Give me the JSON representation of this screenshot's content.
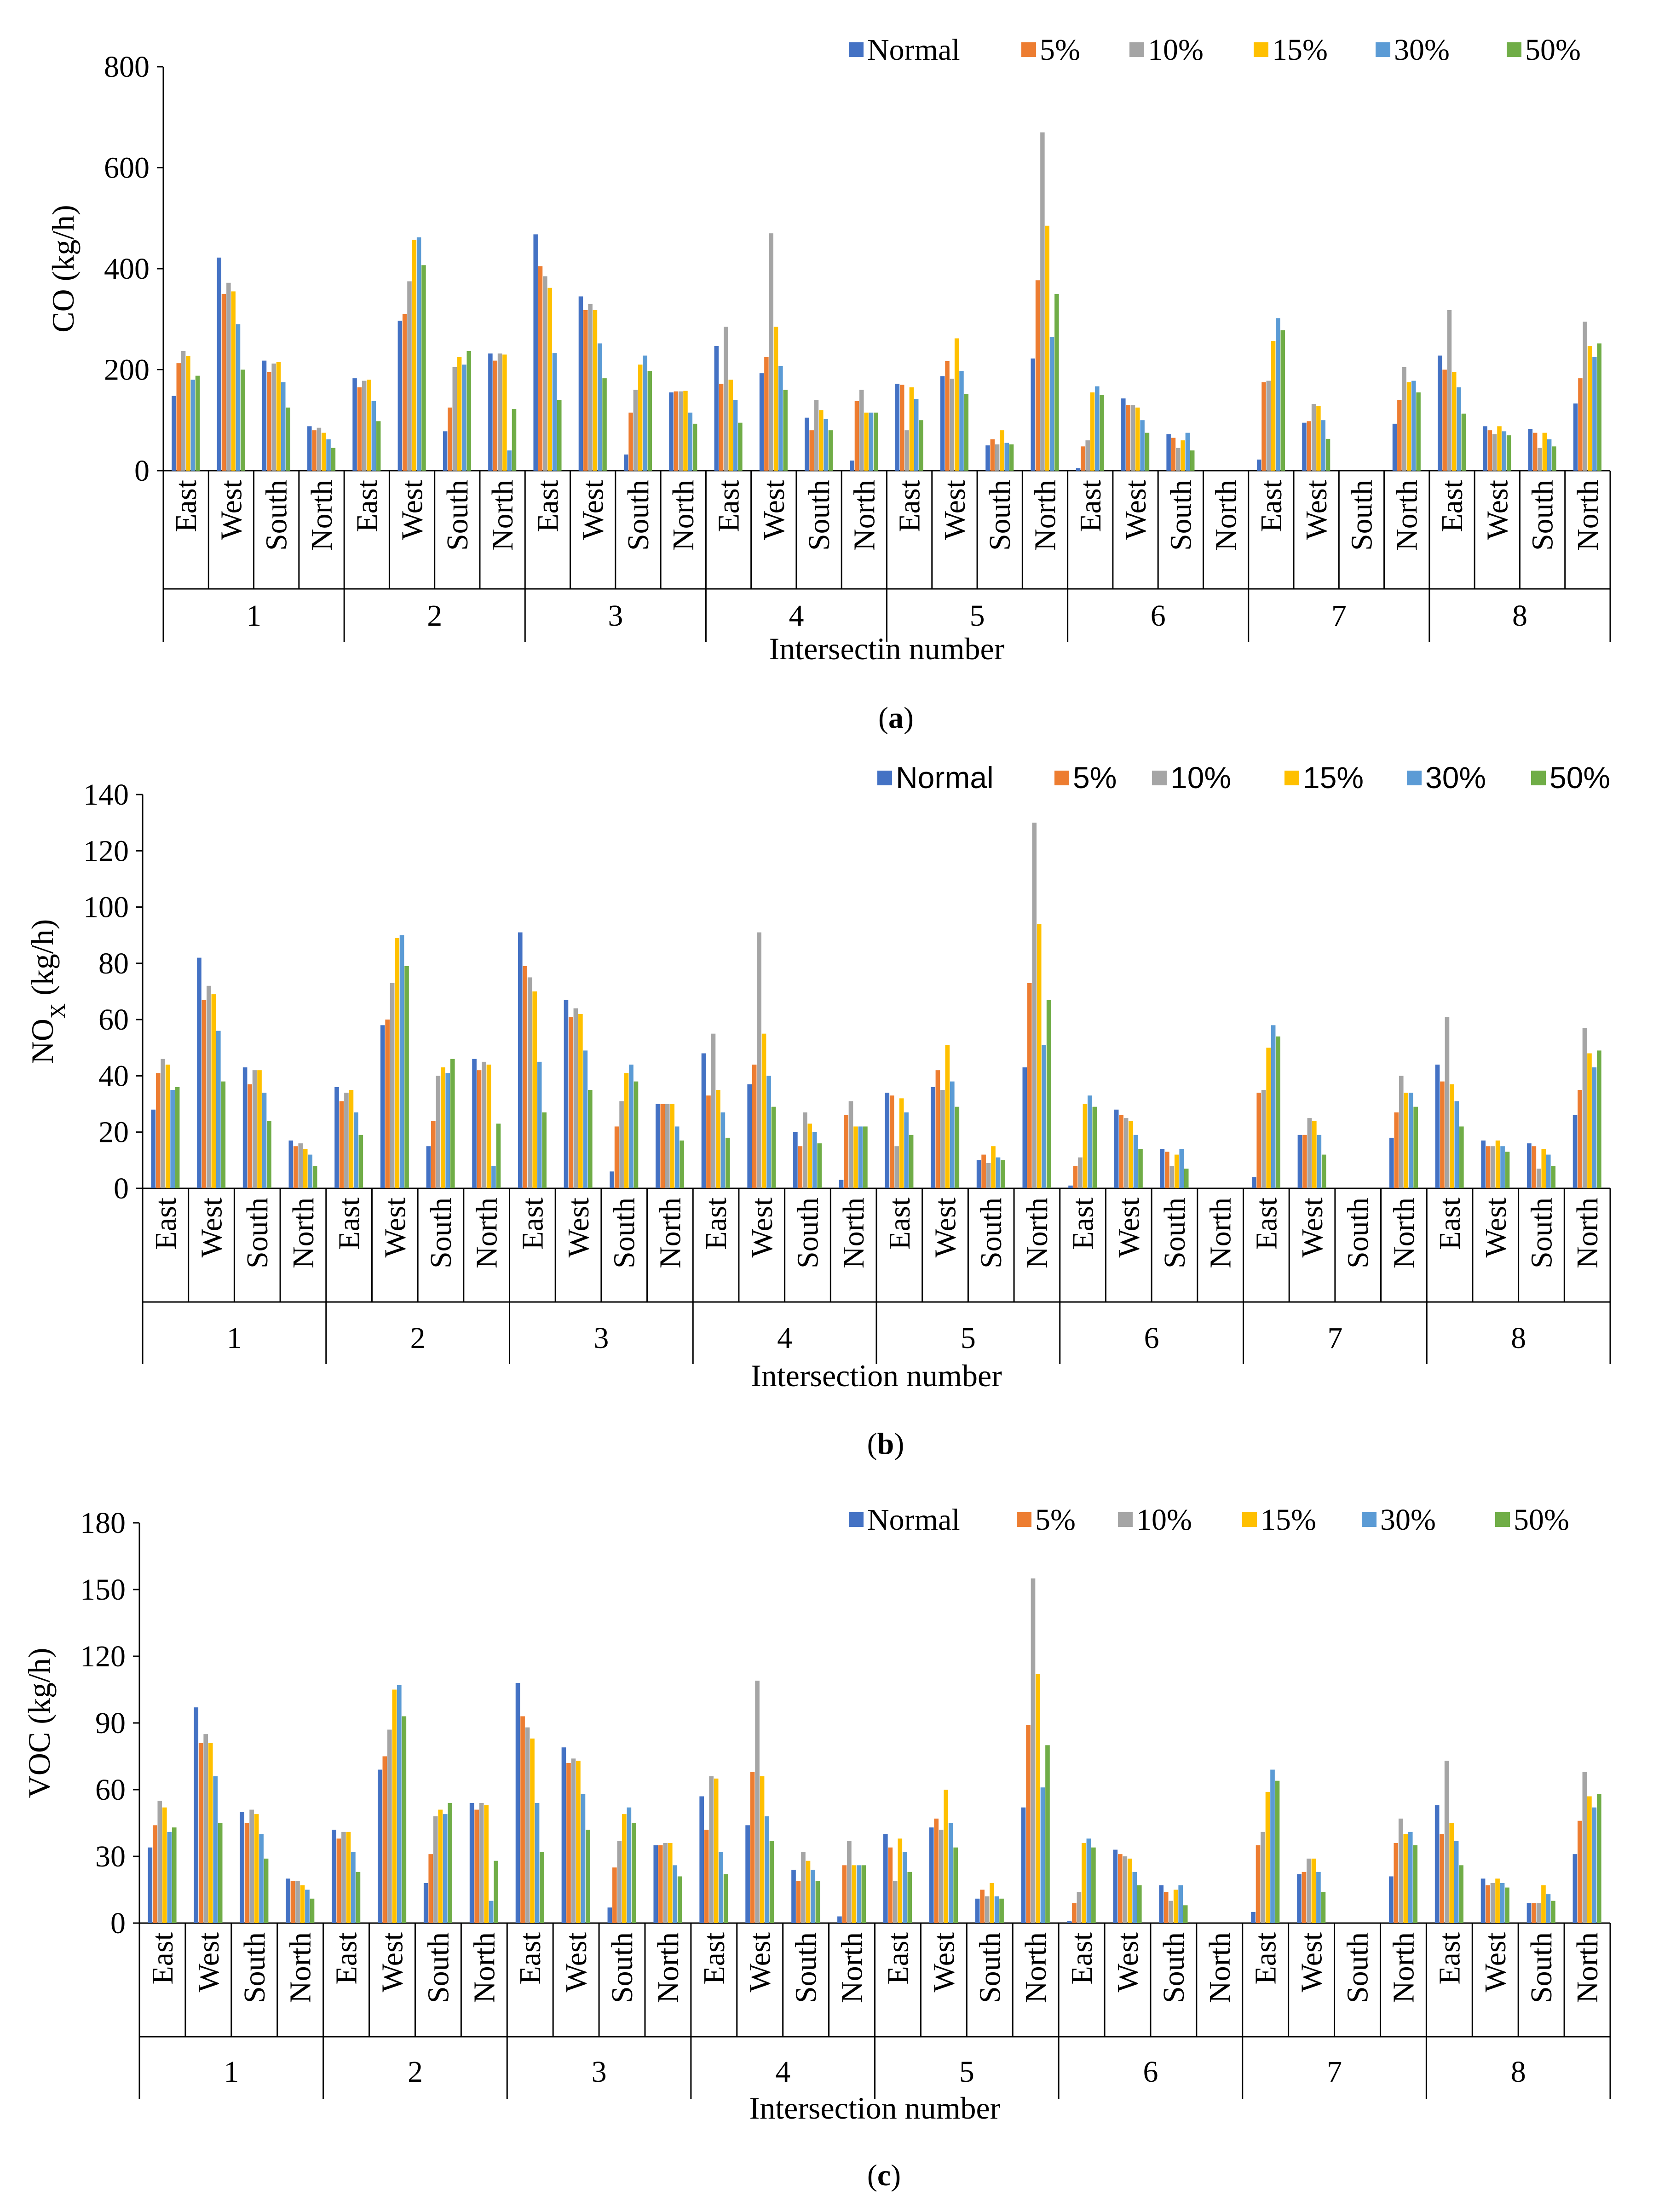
{
  "colors": {
    "Normal": "#4472C4",
    "5%": "#ED7D31",
    "10%": "#A5A5A5",
    "15%": "#FFC000",
    "30%": "#5B9BD5",
    "50%": "#70AD47"
  },
  "chart_data": [
    {
      "type": "bar",
      "panel_label": "(a)",
      "title": "",
      "ylabel": "CO (kg/h)",
      "xlabel": "Intersectin number",
      "ylim": [
        0,
        800
      ],
      "yticks": [
        "0",
        "200",
        "400",
        "600",
        "800"
      ],
      "groups": [
        "1",
        "2",
        "3",
        "4",
        "5",
        "6",
        "7",
        "8"
      ],
      "directions": [
        "East",
        "West",
        "South",
        "North"
      ],
      "legend": [
        "Normal",
        "5%",
        "10%",
        "15%",
        "30%",
        "50%"
      ],
      "series": [
        {
          "name": "Normal",
          "values": [
            148,
            422,
            218,
            88,
            183,
            297,
            78,
            232,
            468,
            345,
            32,
            155,
            247,
            193,
            105,
            20,
            172,
            187,
            50,
            222,
            5,
            143,
            72,
            0,
            22,
            95,
            0,
            93,
            228,
            88,
            82,
            133
          ]
        },
        {
          "name": "5%",
          "values": [
            213,
            350,
            195,
            80,
            165,
            310,
            125,
            218,
            405,
            318,
            115,
            157,
            172,
            225,
            80,
            138,
            170,
            217,
            62,
            377,
            48,
            130,
            65,
            0,
            175,
            98,
            0,
            140,
            200,
            80,
            75,
            183
          ]
        },
        {
          "name": "10%",
          "values": [
            237,
            372,
            212,
            85,
            178,
            375,
            205,
            232,
            385,
            330,
            160,
            157,
            285,
            470,
            140,
            160,
            80,
            182,
            52,
            670,
            60,
            130,
            45,
            0,
            178,
            132,
            0,
            205,
            318,
            72,
            45,
            295
          ]
        },
        {
          "name": "15%",
          "values": [
            227,
            355,
            215,
            75,
            180,
            457,
            225,
            230,
            362,
            318,
            210,
            158,
            180,
            285,
            120,
            115,
            165,
            262,
            80,
            485,
            155,
            125,
            60,
            0,
            257,
            128,
            0,
            175,
            195,
            88,
            75,
            247
          ]
        },
        {
          "name": "30%",
          "values": [
            180,
            290,
            175,
            62,
            138,
            462,
            210,
            40,
            233,
            252,
            228,
            115,
            140,
            207,
            102,
            115,
            142,
            197,
            55,
            265,
            167,
            100,
            75,
            0,
            302,
            100,
            0,
            178,
            165,
            78,
            62,
            225
          ]
        },
        {
          "name": "50%",
          "values": [
            188,
            200,
            125,
            45,
            98,
            407,
            237,
            122,
            140,
            183,
            197,
            93,
            95,
            160,
            80,
            115,
            100,
            152,
            52,
            350,
            150,
            75,
            40,
            0,
            278,
            63,
            0,
            155,
            113,
            70,
            48,
            252
          ]
        }
      ]
    },
    {
      "type": "bar",
      "panel_label": "(b)",
      "title": "",
      "ylabel": "NO",
      "ylabel_sub": "X",
      "ylabel_unit": " (kg/h)",
      "xlabel": "Intersection number",
      "ylim": [
        0,
        140
      ],
      "yticks": [
        "0",
        "20",
        "40",
        "60",
        "80",
        "100",
        "120",
        "140"
      ],
      "groups": [
        "1",
        "2",
        "3",
        "4",
        "5",
        "6",
        "7",
        "8"
      ],
      "directions": [
        "East",
        "West",
        "South",
        "North"
      ],
      "legend": [
        "Normal",
        "5%",
        "10%",
        "15%",
        "30%",
        "50%"
      ],
      "series": [
        {
          "name": "Normal",
          "values": [
            28,
            82,
            43,
            17,
            36,
            58,
            15,
            46,
            91,
            67,
            6,
            30,
            48,
            37,
            20,
            3,
            34,
            36,
            10,
            43,
            1,
            28,
            14,
            0,
            4,
            19,
            0,
            18,
            44,
            17,
            16,
            26
          ]
        },
        {
          "name": "5%",
          "values": [
            41,
            67,
            37,
            15,
            31,
            60,
            24,
            42,
            79,
            61,
            22,
            30,
            33,
            44,
            15,
            26,
            33,
            42,
            12,
            73,
            8,
            26,
            13,
            0,
            34,
            19,
            0,
            27,
            38,
            15,
            15,
            35
          ]
        },
        {
          "name": "10%",
          "values": [
            46,
            72,
            42,
            16,
            34,
            73,
            40,
            45,
            75,
            64,
            31,
            30,
            55,
            91,
            27,
            31,
            15,
            35,
            9,
            130,
            11,
            25,
            8,
            0,
            35,
            25,
            0,
            40,
            61,
            15,
            7,
            57
          ]
        },
        {
          "name": "15%",
          "values": [
            44,
            69,
            42,
            14,
            35,
            89,
            43,
            44,
            70,
            62,
            41,
            30,
            35,
            55,
            23,
            22,
            32,
            51,
            15,
            94,
            30,
            24,
            12,
            0,
            50,
            24,
            0,
            34,
            37,
            17,
            14,
            48
          ]
        },
        {
          "name": "30%",
          "values": [
            35,
            56,
            34,
            12,
            27,
            90,
            41,
            8,
            45,
            49,
            44,
            22,
            27,
            40,
            20,
            22,
            27,
            38,
            11,
            51,
            33,
            19,
            14,
            0,
            58,
            19,
            0,
            34,
            31,
            15,
            12,
            43
          ]
        },
        {
          "name": "50%",
          "values": [
            36,
            38,
            24,
            8,
            19,
            79,
            46,
            23,
            27,
            35,
            38,
            17,
            18,
            29,
            16,
            22,
            19,
            29,
            10,
            67,
            29,
            14,
            7,
            0,
            54,
            12,
            0,
            29,
            22,
            13,
            8,
            49
          ]
        }
      ]
    },
    {
      "type": "bar",
      "panel_label": "(c)",
      "title": "",
      "ylabel": "VOC (kg/h)",
      "xlabel": "Intersection number",
      "ylim": [
        0,
        180
      ],
      "yticks": [
        "0",
        "30",
        "60",
        "90",
        "120",
        "150",
        "180"
      ],
      "groups": [
        "1",
        "2",
        "3",
        "4",
        "5",
        "6",
        "7",
        "8"
      ],
      "directions": [
        "East",
        "West",
        "South",
        "North"
      ],
      "legend": [
        "Normal",
        "5%",
        "10%",
        "15%",
        "30%",
        "50%"
      ],
      "series": [
        {
          "name": "Normal",
          "values": [
            34,
            97,
            50,
            20,
            42,
            69,
            18,
            54,
            108,
            79,
            7,
            35,
            57,
            44,
            24,
            3,
            40,
            43,
            11,
            52,
            1,
            33,
            17,
            0,
            5,
            22,
            0,
            21,
            53,
            20,
            9,
            31
          ]
        },
        {
          "name": "5%",
          "values": [
            44,
            81,
            45,
            19,
            38,
            75,
            31,
            51,
            93,
            72,
            25,
            35,
            42,
            68,
            19,
            26,
            34,
            47,
            15,
            89,
            9,
            31,
            14,
            0,
            35,
            23,
            0,
            36,
            40,
            17,
            9,
            46
          ]
        },
        {
          "name": "10%",
          "values": [
            55,
            85,
            51,
            19,
            41,
            87,
            48,
            54,
            88,
            74,
            37,
            36,
            66,
            109,
            32,
            37,
            19,
            42,
            12,
            155,
            14,
            30,
            10,
            0,
            41,
            29,
            0,
            47,
            73,
            18,
            9,
            68
          ]
        },
        {
          "name": "15%",
          "values": [
            52,
            81,
            49,
            17,
            41,
            105,
            51,
            53,
            83,
            73,
            49,
            36,
            65,
            66,
            28,
            26,
            38,
            60,
            18,
            112,
            36,
            29,
            15,
            0,
            59,
            29,
            0,
            40,
            45,
            20,
            17,
            57
          ]
        },
        {
          "name": "30%",
          "values": [
            41,
            66,
            40,
            15,
            32,
            107,
            49,
            10,
            54,
            58,
            52,
            26,
            32,
            48,
            24,
            26,
            32,
            45,
            12,
            61,
            38,
            23,
            17,
            0,
            69,
            23,
            0,
            41,
            37,
            18,
            13,
            52
          ]
        },
        {
          "name": "50%",
          "values": [
            43,
            45,
            29,
            11,
            23,
            93,
            54,
            28,
            32,
            42,
            45,
            21,
            22,
            37,
            19,
            26,
            23,
            34,
            11,
            80,
            34,
            17,
            8,
            0,
            64,
            14,
            0,
            35,
            26,
            16,
            10,
            58
          ]
        }
      ]
    }
  ]
}
